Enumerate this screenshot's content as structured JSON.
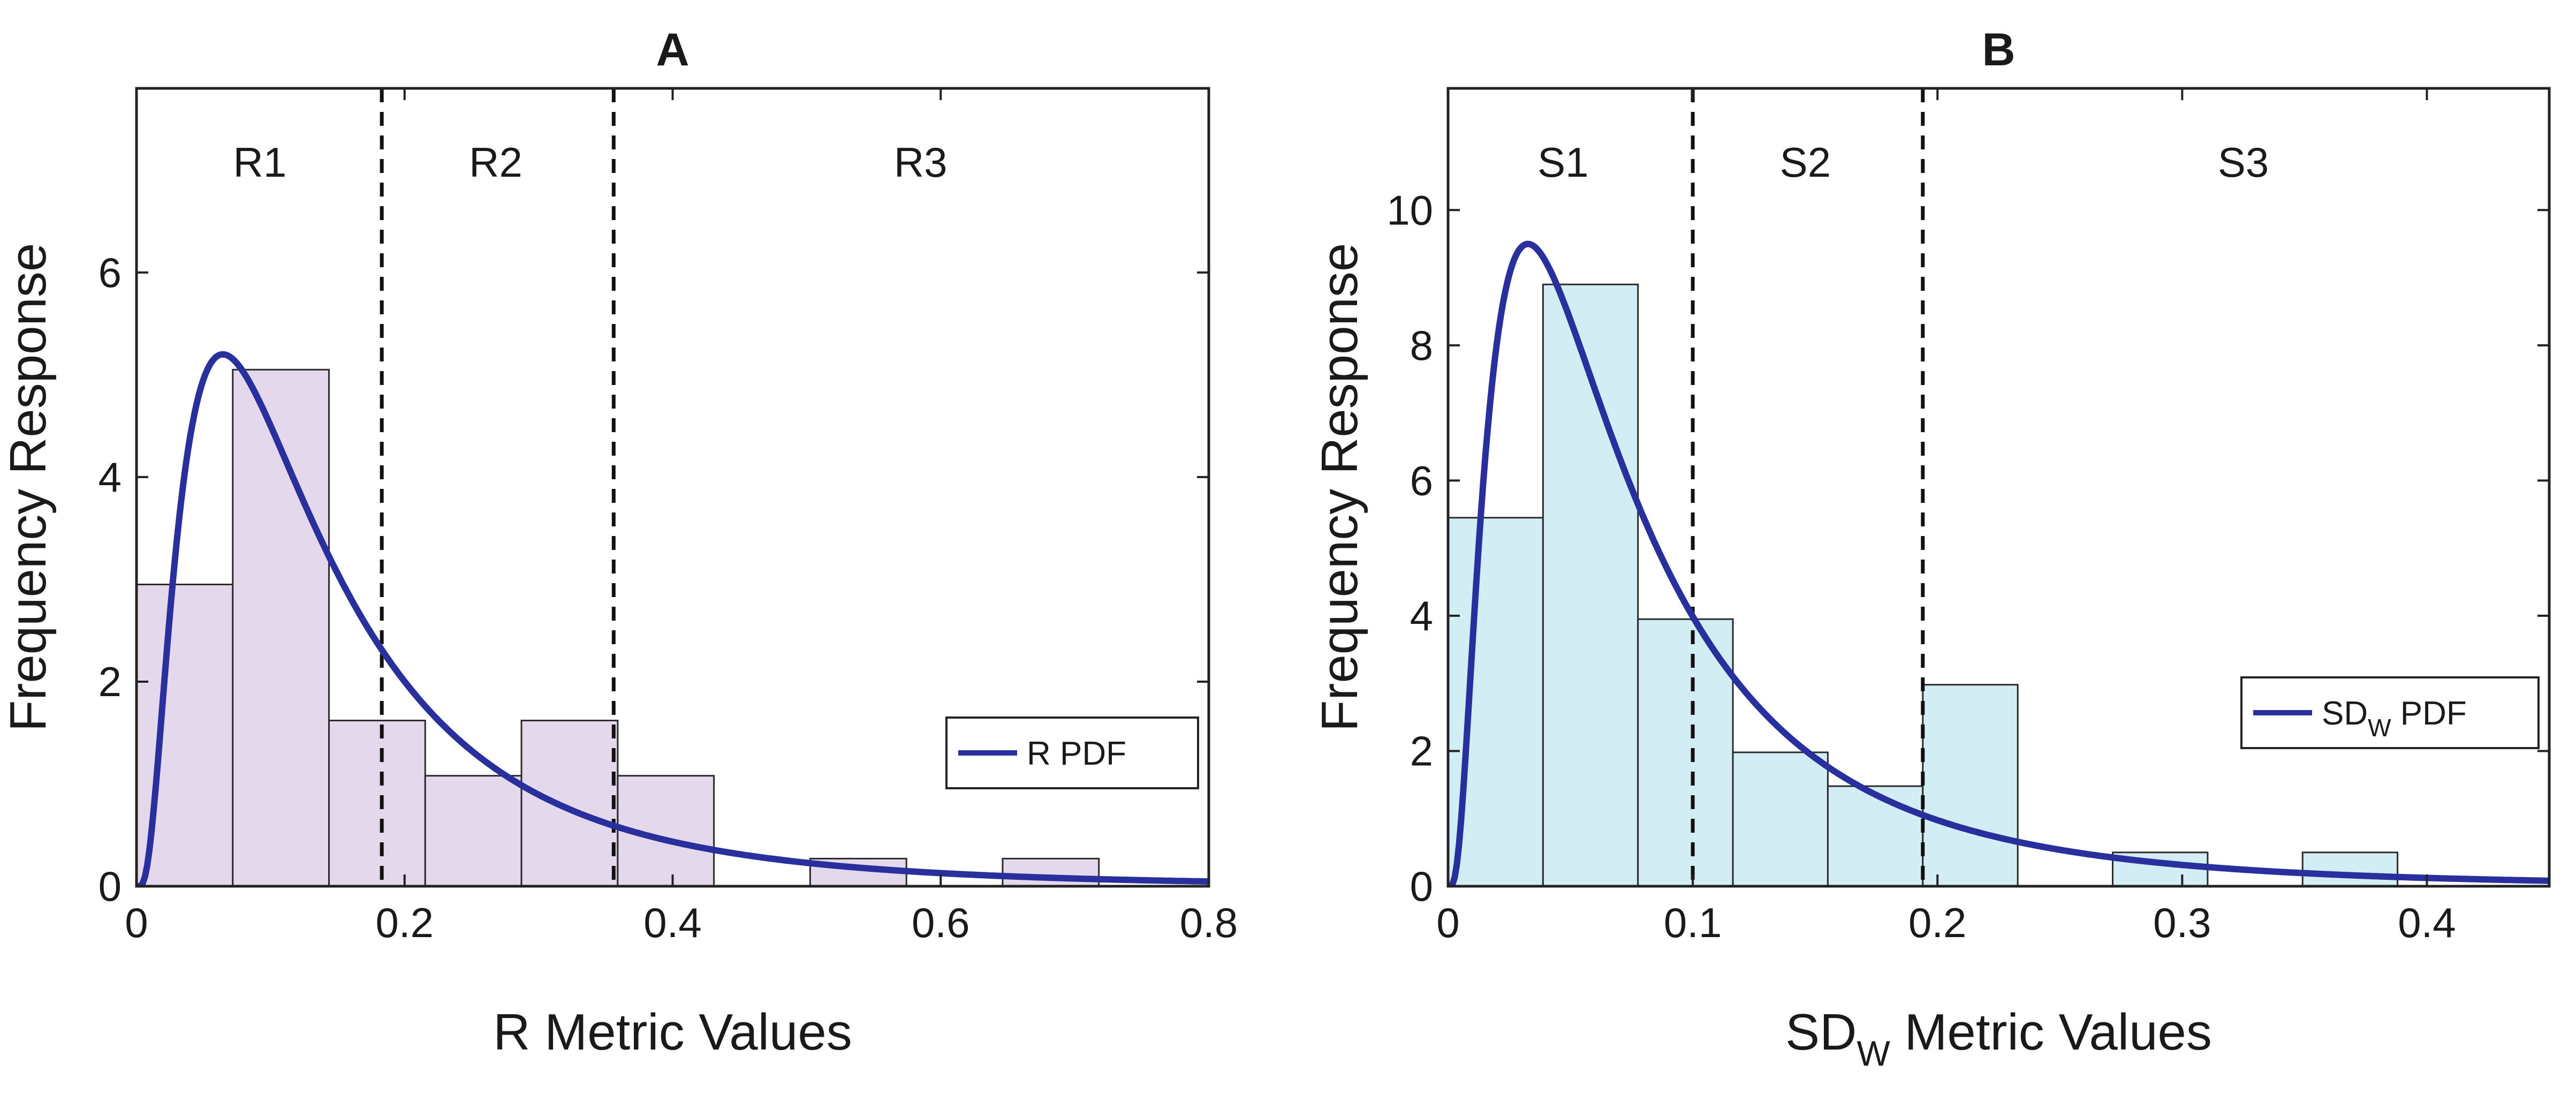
{
  "chart_data": [
    {
      "type": "bar",
      "panel": "A",
      "title": "A",
      "xlabel": "R Metric Values",
      "xlabel_sub": "",
      "ylabel": "Frequency Response",
      "xlim": [
        0,
        0.8
      ],
      "ylim": [
        0,
        7.8
      ],
      "xticks": [
        0,
        0.2,
        0.4,
        0.6,
        0.8
      ],
      "xtick_labels": [
        "0",
        "0.2",
        "0.4",
        "0.6",
        "0.8"
      ],
      "yticks": [
        0,
        2,
        4,
        6
      ],
      "ytick_labels": [
        "0",
        "2",
        "4",
        "6"
      ],
      "bin_edges": [
        0,
        0.0718,
        0.1436,
        0.2154,
        0.2872,
        0.359,
        0.4308,
        0.5026,
        0.5744,
        0.6462,
        0.718
      ],
      "values": [
        2.95,
        5.05,
        1.62,
        1.08,
        1.62,
        1.08,
        0,
        0.27,
        0,
        0.27
      ],
      "bar_color": "#e4d8ec",
      "thresholds": [
        0.183,
        0.356
      ],
      "regions": [
        {
          "label": "R1",
          "x": 0.092
        },
        {
          "label": "R2",
          "x": 0.268
        },
        {
          "label": "R3",
          "x": 0.585
        }
      ],
      "pdf": {
        "model": "lognormal",
        "mu": -2.07,
        "sigma": 0.82,
        "peak_x": 0.072,
        "peak_y": 5.2,
        "color": "#2a2f9e"
      },
      "legend": {
        "label": "R PDF",
        "label_sub": "",
        "label_suffix": "",
        "position": "right-middle"
      }
    },
    {
      "type": "bar",
      "panel": "B",
      "title": "B",
      "xlabel": "SD",
      "xlabel_sub": "W",
      "xlabel_suffix": " Metric Values",
      "ylabel": "Frequency Response",
      "xlim": [
        0,
        0.45
      ],
      "ylim": [
        0,
        11.8
      ],
      "xticks": [
        0,
        0.1,
        0.2,
        0.3,
        0.4
      ],
      "xtick_labels": [
        "0",
        "0.1",
        "0.2",
        "0.3",
        "0.4"
      ],
      "yticks": [
        0,
        2,
        4,
        6,
        8,
        10
      ],
      "ytick_labels": [
        "0",
        "2",
        "4",
        "6",
        "8",
        "10"
      ],
      "bin_edges": [
        0,
        0.0388,
        0.0776,
        0.1164,
        0.1552,
        0.194,
        0.2328,
        0.2716,
        0.3104,
        0.3492,
        0.388
      ],
      "values": [
        5.45,
        8.9,
        3.95,
        1.98,
        1.48,
        2.98,
        0,
        0.5,
        0,
        0.5
      ],
      "bar_color": "#d2eef4",
      "thresholds": [
        0.1,
        0.194
      ],
      "regions": [
        {
          "label": "S1",
          "x": 0.047
        },
        {
          "label": "S2",
          "x": 0.146
        },
        {
          "label": "S3",
          "x": 0.325
        }
      ],
      "pdf": {
        "model": "lognormal",
        "mu": -2.7,
        "sigma": 0.85,
        "peak_x": 0.039,
        "peak_y": 9.5,
        "color": "#2a2f9e"
      },
      "legend": {
        "label": "SD",
        "label_sub": "W",
        "label_suffix": " PDF",
        "position": "right-middle"
      }
    }
  ]
}
